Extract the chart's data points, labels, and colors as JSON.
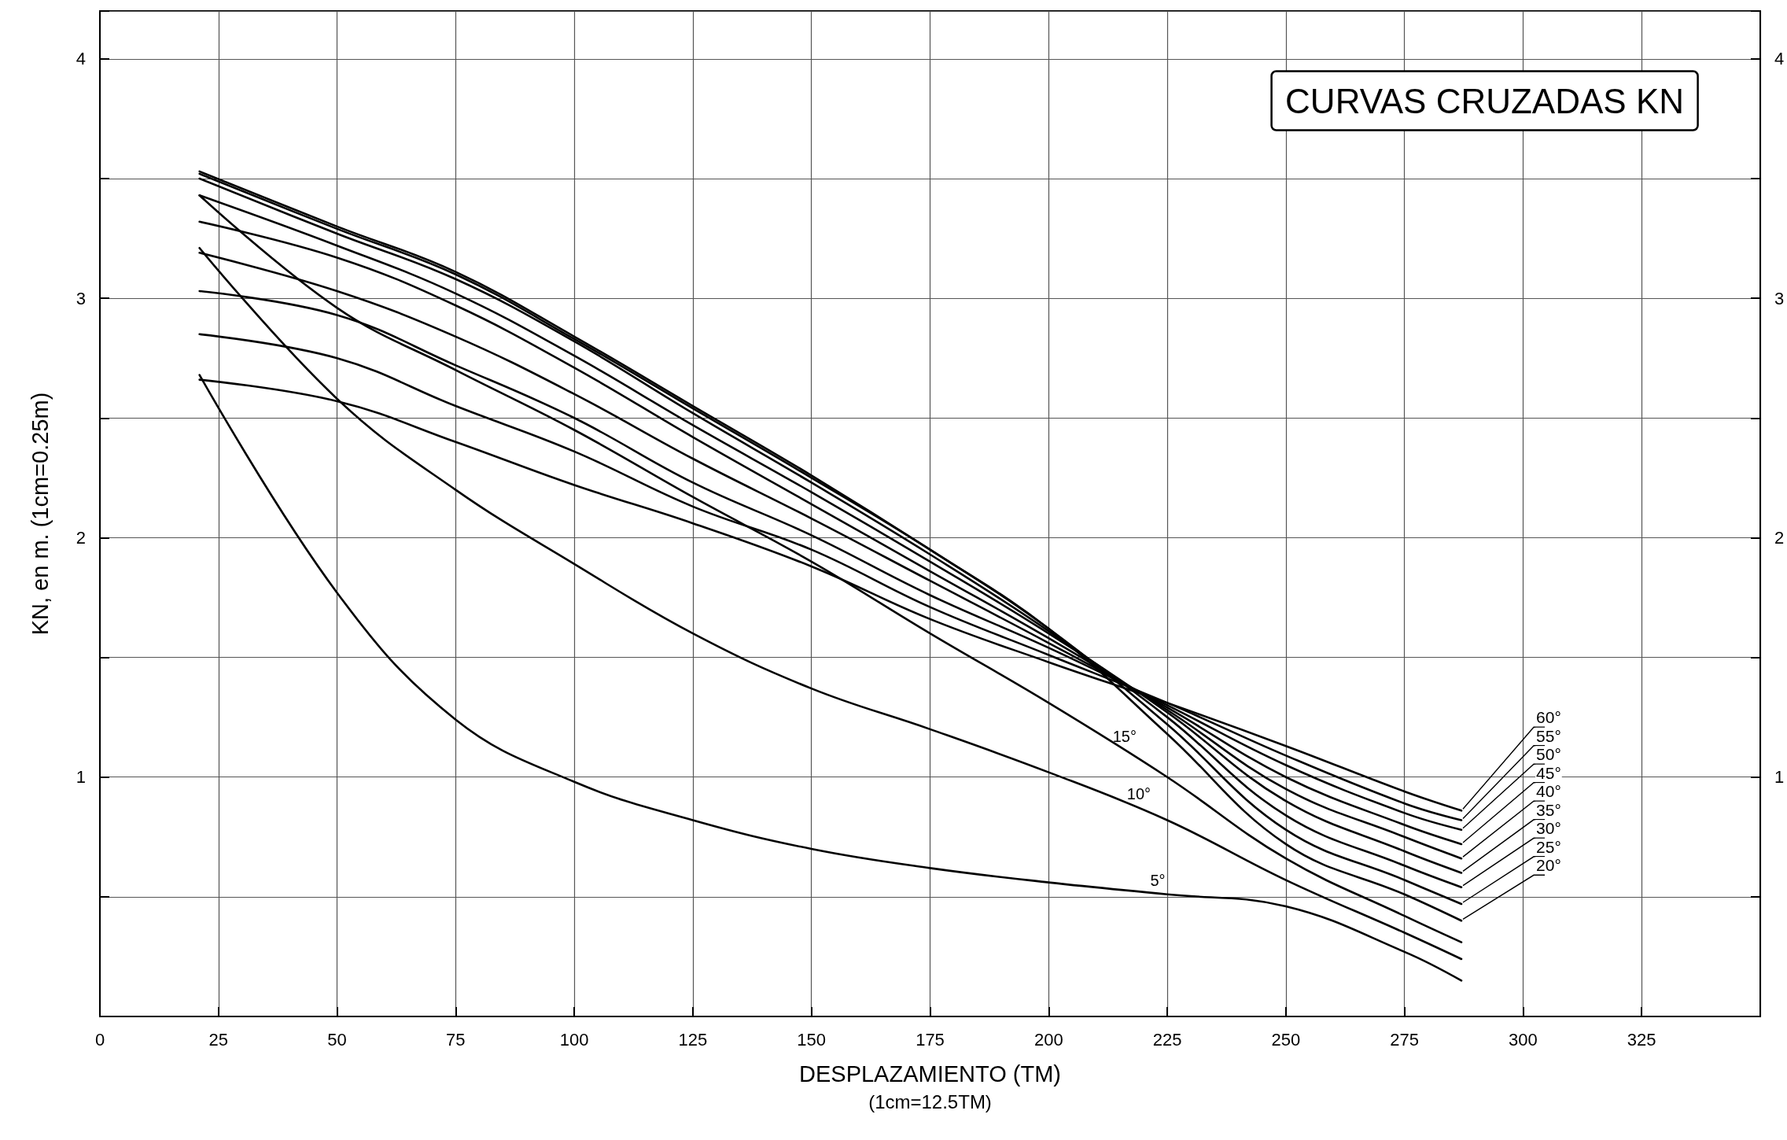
{
  "chart_data": {
    "type": "line",
    "title": "CURVAS CRUZADAS KN",
    "xlabel": "DESPLAZAMIENTO (TM)",
    "ylabel": "KN, en m. (1cm=0.25m)",
    "x": [
      21,
      50,
      75,
      100,
      125,
      150,
      175,
      200,
      225,
      250,
      275,
      287
    ],
    "series": [
      {
        "color": "#000000",
        "values": [
          2.68,
          1.77,
          1.24,
          0.98,
          0.82,
          0.7,
          0.62,
          0.56,
          0.51,
          0.46,
          0.27,
          0.15
        ]
      },
      {
        "color": "#000000",
        "values": [
          3.21,
          2.58,
          2.2,
          1.89,
          1.6,
          1.37,
          1.2,
          1.02,
          0.82,
          0.57,
          0.35,
          0.24
        ]
      },
      {
        "color": "#000000",
        "values": [
          3.43,
          2.96,
          2.7,
          2.45,
          2.17,
          1.9,
          1.6,
          1.31,
          1.0,
          0.66,
          0.42,
          0.31
        ]
      },
      {
        "color": "#000000",
        "values": [
          3.53,
          3.3,
          3.11,
          2.84,
          2.55,
          2.26,
          1.95,
          1.62,
          1.18,
          0.72,
          0.51,
          0.4
        ]
      },
      {
        "color": "#000000",
        "values": [
          3.52,
          3.29,
          3.1,
          2.83,
          2.54,
          2.25,
          1.95,
          1.62,
          1.22,
          0.78,
          0.57,
          0.47
        ]
      },
      {
        "color": "#000000",
        "values": [
          3.5,
          3.27,
          3.08,
          2.82,
          2.52,
          2.23,
          1.93,
          1.61,
          1.25,
          0.84,
          0.63,
          0.54
        ]
      },
      {
        "color": "#000000",
        "values": [
          3.43,
          3.22,
          3.02,
          2.76,
          2.47,
          2.19,
          1.9,
          1.6,
          1.27,
          0.9,
          0.69,
          0.6
        ]
      },
      {
        "color": "#000000",
        "values": [
          3.32,
          3.17,
          2.97,
          2.71,
          2.42,
          2.14,
          1.86,
          1.58,
          1.28,
          0.95,
          0.75,
          0.66
        ]
      },
      {
        "color": "#000000",
        "values": [
          3.19,
          3.03,
          2.84,
          2.6,
          2.33,
          2.08,
          1.82,
          1.56,
          1.29,
          1.0,
          0.8,
          0.72
        ]
      },
      {
        "color": "#000000",
        "values": [
          3.03,
          2.93,
          2.72,
          2.5,
          2.23,
          2.01,
          1.76,
          1.54,
          1.3,
          1.05,
          0.85,
          0.78
        ]
      },
      {
        "color": "#000000",
        "values": [
          2.85,
          2.75,
          2.55,
          2.36,
          2.13,
          1.95,
          1.71,
          1.51,
          1.31,
          1.09,
          0.89,
          0.82
        ]
      },
      {
        "color": "#000000",
        "values": [
          2.66,
          2.57,
          2.4,
          2.22,
          2.06,
          1.88,
          1.66,
          1.48,
          1.31,
          1.13,
          0.94,
          0.86
        ]
      }
    ],
    "annotations": [
      {
        "text": "5°",
        "x": 223,
        "y": 0.51
      },
      {
        "text": "10°",
        "x": 219,
        "y": 0.87
      },
      {
        "text": "15°",
        "x": 216,
        "y": 1.11
      },
      {
        "text": "20°",
        "x": 287,
        "y": 0.4
      },
      {
        "text": "25°",
        "x": 287,
        "y": 0.47
      },
      {
        "text": "30°",
        "x": 287,
        "y": 0.54
      },
      {
        "text": "35°",
        "x": 287,
        "y": 0.6
      },
      {
        "text": "40°",
        "x": 287,
        "y": 0.66
      },
      {
        "text": "45°",
        "x": 287,
        "y": 0.72
      },
      {
        "text": "50°",
        "x": 287,
        "y": 0.78
      },
      {
        "text": "55°",
        "x": 287,
        "y": 0.82
      },
      {
        "text": "60°",
        "x": 287,
        "y": 0.86
      },
      "(1cm=12.5TM)"
    ],
    "xlim": [
      0,
      350
    ],
    "xticks": [
      0,
      25,
      50,
      75,
      100,
      125,
      150,
      175,
      200,
      225,
      250,
      275,
      300,
      325
    ],
    "ylim": [
      0,
      4.2
    ],
    "yticks": [
      {
        "value": 0.5,
        "label": null
      },
      1,
      {
        "value": 1.5,
        "label": null
      },
      2,
      {
        "value": 2.5,
        "label": null
      },
      3,
      {
        "value": 3.5,
        "label": null
      },
      4
    ],
    "y2lim": [
      0,
      4.2
    ],
    "y2ticks": [
      {
        "value": 0.5,
        "label": null
      },
      1,
      {
        "value": 1.5,
        "label": null
      },
      2,
      {
        "value": 2.5,
        "label": null
      },
      3,
      {
        "value": 3.5,
        "label": null
      },
      4
    ],
    "grid": true,
    "marker": "none",
    "line_style": "solid"
  }
}
